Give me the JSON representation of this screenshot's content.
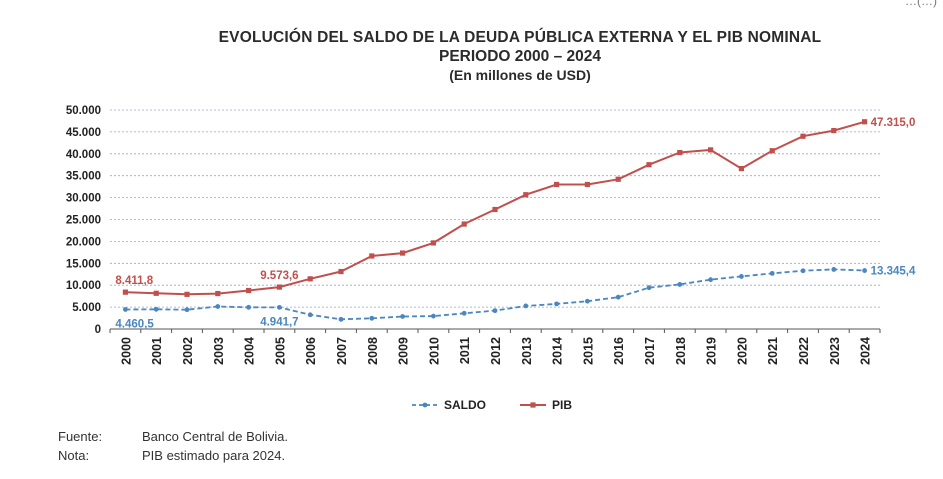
{
  "corner_fragment": "…(…)",
  "chart_data": {
    "type": "line",
    "title": "EVOLUCIÓN DEL SALDO DE LA DEUDA PÚBLICA EXTERNA Y EL PIB NOMINAL",
    "subtitle": "PERIODO 2000 – 2024",
    "subtitle2": "(En millones de USD)",
    "xlabel": "",
    "ylabel": "",
    "ylim": [
      0,
      50000
    ],
    "y_ticks": [
      "0",
      "5.000",
      "10.000",
      "15.000",
      "20.000",
      "25.000",
      "30.000",
      "35.000",
      "40.000",
      "45.000",
      "50.000"
    ],
    "grid": true,
    "legend_position": "bottom-center",
    "categories": [
      "2000",
      "2001",
      "2002",
      "2003",
      "2004",
      "2005",
      "2006",
      "2007",
      "2008",
      "2009",
      "2010",
      "2011",
      "2012",
      "2013",
      "2014",
      "2015",
      "2016",
      "2017",
      "2018",
      "2019",
      "2020",
      "2021",
      "2022",
      "2023",
      "2024"
    ],
    "series": [
      {
        "name": "SALDO",
        "style": "dashed",
        "color": "#4a86c0",
        "values": [
          4460.5,
          4497,
          4400,
          5142,
          4950,
          4941.7,
          3248,
          2208,
          2443,
          2857,
          2944,
          3581,
          4196,
          5262,
          5736,
          6342,
          7268,
          9428,
          10178,
          11268,
          12000,
          12700,
          13300,
          13600,
          13345.4
        ],
        "annotations": [
          {
            "index": 0,
            "label": "4.460,5"
          },
          {
            "index": 5,
            "label": "4.941,7"
          },
          {
            "index": 24,
            "label": "13.345,4"
          }
        ]
      },
      {
        "name": "PIB",
        "style": "solid",
        "color": "#c0504d",
        "values": [
          8411.8,
          8154,
          7917,
          8093,
          8784,
          9573.6,
          11452,
          13120,
          16674,
          17340,
          19650,
          23963,
          27282,
          30659,
          32996,
          33000,
          34189,
          37509,
          40288,
          40895,
          36630,
          40703,
          44008,
          45300,
          47315.0
        ],
        "annotations": [
          {
            "index": 0,
            "label": "8.411,8"
          },
          {
            "index": 5,
            "label": "9.573,6"
          },
          {
            "index": 24,
            "label": "47.315,0"
          }
        ]
      }
    ]
  },
  "notes": [
    {
      "label": "Fuente:",
      "text": "Banco Central de Bolivia."
    },
    {
      "label": "Nota:",
      "text": "PIB estimado para 2024."
    }
  ]
}
